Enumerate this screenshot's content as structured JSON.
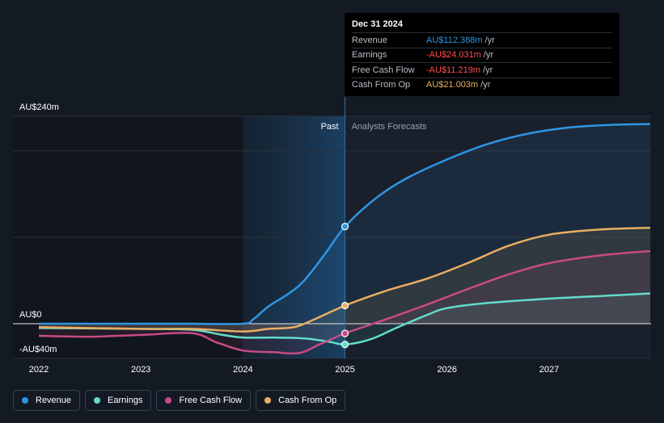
{
  "chart_data": {
    "type": "line",
    "y_axis_labels": [
      "AU$240m",
      "AU$0",
      "-AU$40m"
    ],
    "ylim": [
      -40,
      240
    ],
    "x_ticks": [
      "2022",
      "2023",
      "2024",
      "2025",
      "2026",
      "2027"
    ],
    "x_tick_values": [
      2022,
      2023,
      2024,
      2025,
      2026,
      2027
    ],
    "xlim": [
      2021.75,
      2027.99
    ],
    "divider_x": 2025.0,
    "past_shade_start": 2024.0,
    "past_label": "Past",
    "forecast_label": "Analysts Forecasts",
    "gridlines": true,
    "series": [
      {
        "name": "Revenue",
        "color": "#2f95e3",
        "points": [
          [
            2022.0,
            0.0
          ],
          [
            2023.0,
            0.0
          ],
          [
            2023.5,
            0.0
          ],
          [
            2024.0,
            0.0
          ],
          [
            2024.1,
            5
          ],
          [
            2024.25,
            20
          ],
          [
            2024.45,
            35
          ],
          [
            2024.6,
            50
          ],
          [
            2024.8,
            80
          ],
          [
            2025.0,
            112.388
          ],
          [
            2025.3,
            145
          ],
          [
            2025.6,
            168
          ],
          [
            2026.0,
            190
          ],
          [
            2026.4,
            208
          ],
          [
            2026.8,
            220
          ],
          [
            2027.2,
            227
          ],
          [
            2027.6,
            230
          ],
          [
            2027.99,
            231
          ]
        ],
        "marker": [
          2025.0,
          112.388
        ]
      },
      {
        "name": "Earnings",
        "color": "#63dccb",
        "points": [
          [
            2022.0,
            -5
          ],
          [
            2023.0,
            -6
          ],
          [
            2023.5,
            -7
          ],
          [
            2023.8,
            -13
          ],
          [
            2024.0,
            -16
          ],
          [
            2024.3,
            -16
          ],
          [
            2024.6,
            -17
          ],
          [
            2024.85,
            -21
          ],
          [
            2025.0,
            -24.031
          ],
          [
            2025.25,
            -18
          ],
          [
            2025.5,
            -5
          ],
          [
            2025.8,
            10
          ],
          [
            2026.0,
            18
          ],
          [
            2026.4,
            24
          ],
          [
            2027.0,
            29
          ],
          [
            2027.5,
            32
          ],
          [
            2027.99,
            35
          ]
        ],
        "marker": [
          2025.0,
          -24.031
        ]
      },
      {
        "name": "Free Cash Flow",
        "color": "#c74a86",
        "points": [
          [
            2022.0,
            -14
          ],
          [
            2022.5,
            -15
          ],
          [
            2023.0,
            -13
          ],
          [
            2023.5,
            -11
          ],
          [
            2023.75,
            -22
          ],
          [
            2024.0,
            -31
          ],
          [
            2024.3,
            -33
          ],
          [
            2024.55,
            -34
          ],
          [
            2024.75,
            -24
          ],
          [
            2025.0,
            -11.219
          ],
          [
            2025.4,
            5
          ],
          [
            2025.8,
            22
          ],
          [
            2026.2,
            40
          ],
          [
            2026.6,
            57
          ],
          [
            2027.0,
            70
          ],
          [
            2027.5,
            79
          ],
          [
            2027.99,
            84
          ]
        ],
        "marker": [
          2025.0,
          -11.219
        ]
      },
      {
        "name": "Cash From Op",
        "color": "#e9ae63",
        "points": [
          [
            2022.0,
            -4
          ],
          [
            2023.0,
            -6
          ],
          [
            2023.5,
            -6
          ],
          [
            2024.0,
            -9
          ],
          [
            2024.25,
            -6
          ],
          [
            2024.5,
            -4
          ],
          [
            2024.7,
            5
          ],
          [
            2025.0,
            21.003
          ],
          [
            2025.4,
            38
          ],
          [
            2025.8,
            52
          ],
          [
            2026.2,
            70
          ],
          [
            2026.6,
            90
          ],
          [
            2027.0,
            103
          ],
          [
            2027.5,
            109
          ],
          [
            2027.99,
            111
          ]
        ],
        "marker": [
          2025.0,
          21.003
        ]
      }
    ]
  },
  "tooltip": {
    "date": "Dec 31 2024",
    "unit": "/yr",
    "rows": [
      {
        "name": "Revenue",
        "value": "AU$112.388m",
        "color": "#2f95e3"
      },
      {
        "name": "Earnings",
        "value": "-AU$24.031m",
        "color": "#ff4d4d"
      },
      {
        "name": "Free Cash Flow",
        "value": "-AU$11.219m",
        "color": "#ff4d4d"
      },
      {
        "name": "Cash From Op",
        "value": "AU$21.003m",
        "color": "#e9ae63"
      }
    ]
  },
  "legend": [
    {
      "label": "Revenue",
      "color": "#2f95e3"
    },
    {
      "label": "Earnings",
      "color": "#63dccb"
    },
    {
      "label": "Free Cash Flow",
      "color": "#c74a86"
    },
    {
      "label": "Cash From Op",
      "color": "#e9ae63"
    }
  ]
}
